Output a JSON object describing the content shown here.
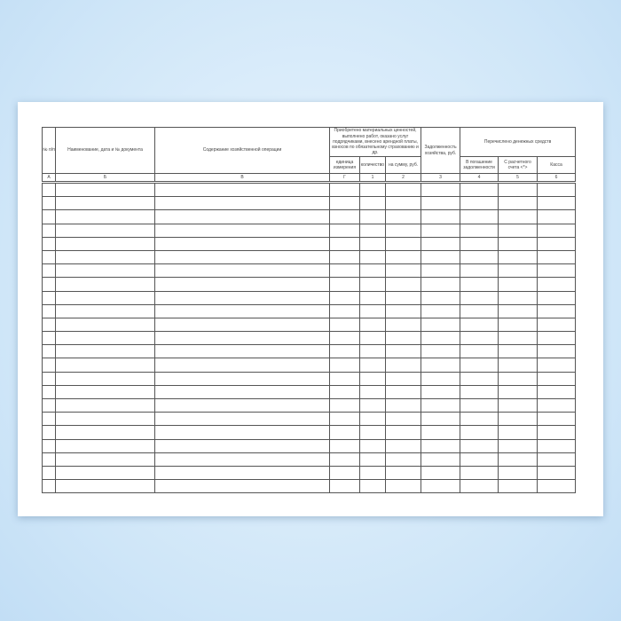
{
  "headers": {
    "num": "№ п/п",
    "doc": "Наименование, дата и № документа",
    "content": "Содержание хозяйственной операции",
    "acquired": "Приобретено материальных ценностей, выполнено работ, оказано услуг подрядчиками, внесено арендной платы, взносов по обязательному страхованию и др.",
    "unit": "единица измерения",
    "qty": "количество",
    "sum": "на сумму, руб.",
    "debt": "Задолженность хозяйства, руб.",
    "transferred": "Перечислено денежных средств",
    "repay": "В погашение задолженности",
    "account": "С расчетного счета <*>",
    "cash": "Касса"
  },
  "letters": [
    "А",
    "Б",
    "В",
    "Г",
    "1",
    "2",
    "3",
    "4",
    "5",
    "6"
  ],
  "empty_rows": 23
}
